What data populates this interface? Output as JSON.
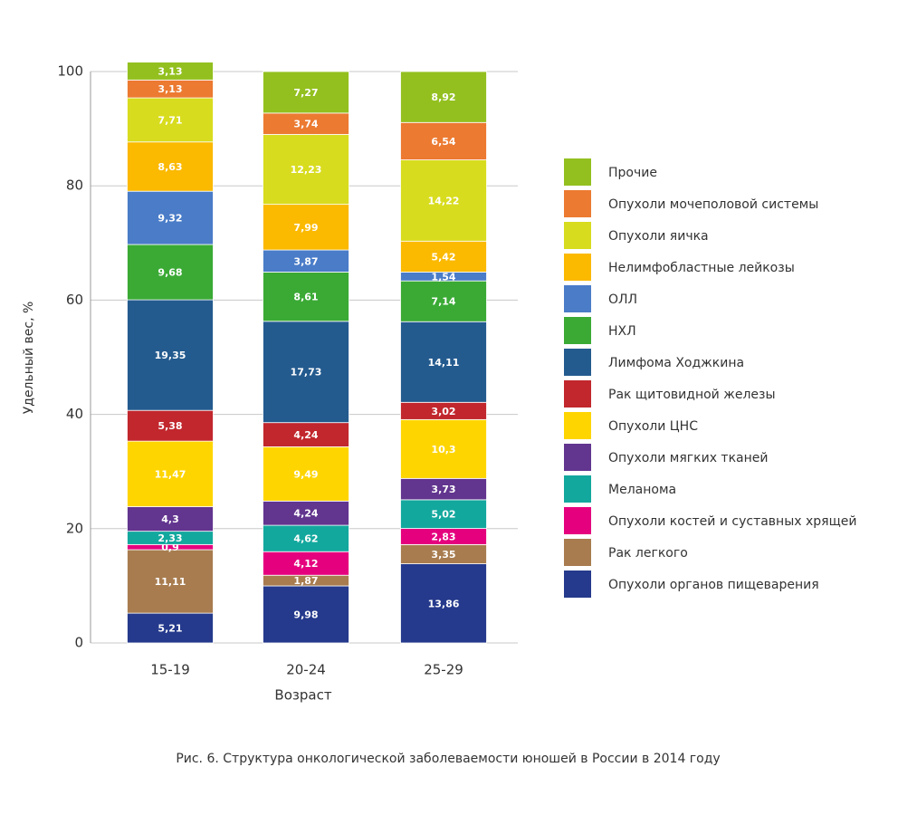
{
  "chart_data": {
    "type": "stacked-bar",
    "caption": "Рис. 6. Структура онкологической заболеваемости юношей в России в 2014 году",
    "xlabel": "Возраст",
    "ylabel": "Удельный вес, %",
    "categories": [
      "15-19",
      "20-24",
      "25-29"
    ],
    "ylim": [
      0,
      100
    ],
    "yticks": [
      0,
      20,
      40,
      60,
      80,
      100
    ],
    "grid": true,
    "series": [
      {
        "name": "Опухоли органов пищеварения",
        "color": "#253a8c",
        "values": [
          5.21,
          9.98,
          13.86
        ],
        "value_labels": [
          "5,21",
          "9,98",
          "13,86"
        ]
      },
      {
        "name": "Рак легкого",
        "color": "#a87c4f",
        "values": [
          11.11,
          1.87,
          3.35
        ],
        "value_labels": [
          "11,11",
          "1,87",
          "3,35"
        ]
      },
      {
        "name": "Опухоли костей и суставных хрящей",
        "color": "#e5007e",
        "values": [
          0.9,
          4.12,
          2.83
        ],
        "value_labels": [
          "0,9",
          "4,12",
          "2,83"
        ]
      },
      {
        "name": "Меланома",
        "color": "#13a89e",
        "values": [
          2.33,
          4.62,
          5.02
        ],
        "value_labels": [
          "2,33",
          "4,62",
          "5,02"
        ]
      },
      {
        "name": "Опухоли мягких тканей",
        "color": "#62358f",
        "values": [
          4.3,
          4.24,
          3.73
        ],
        "value_labels": [
          "4,3",
          "4,24",
          "3,73"
        ]
      },
      {
        "name": "Опухоли ЦНС",
        "color": "#ffd500",
        "values": [
          11.47,
          9.49,
          10.3
        ],
        "value_labels": [
          "11,47",
          "9,49",
          "10,3"
        ]
      },
      {
        "name": "Рак щитовидной железы",
        "color": "#c1272d",
        "values": [
          5.38,
          4.24,
          3.02
        ],
        "value_labels": [
          "5,38",
          "4,24",
          "3,02"
        ]
      },
      {
        "name": "Лимфома Ходжкина",
        "color": "#245b8f",
        "values": [
          19.35,
          17.73,
          14.11
        ],
        "value_labels": [
          "19,35",
          "17,73",
          "14,11"
        ]
      },
      {
        "name": "НХЛ",
        "color": "#3aaa35",
        "values": [
          9.68,
          8.61,
          7.14
        ],
        "value_labels": [
          "9,68",
          "8,61",
          "7,14"
        ]
      },
      {
        "name": "ОЛЛ",
        "color": "#4a7cc8",
        "values": [
          9.32,
          3.87,
          1.54
        ],
        "value_labels": [
          "9,32",
          "3,87",
          "1,54"
        ]
      },
      {
        "name": "Нелимфобластные лейкозы",
        "color": "#fbb900",
        "values": [
          8.63,
          7.99,
          5.42
        ],
        "value_labels": [
          "8,63",
          "7,99",
          "5,42"
        ]
      },
      {
        "name": "Опухоли яичка",
        "color": "#d8dc1e",
        "values": [
          7.71,
          12.23,
          14.22
        ],
        "value_labels": [
          "7,71",
          "12,23",
          "14,22"
        ]
      },
      {
        "name": "Опухоли мочеполовой системы",
        "color": "#ec7a31",
        "values": [
          3.13,
          3.74,
          6.54
        ],
        "value_labels": [
          "3,13",
          "3,74",
          "6,54"
        ]
      },
      {
        "name": "Прочие",
        "color": "#93c01f",
        "values": [
          3.13,
          7.27,
          8.92
        ],
        "value_labels": [
          "3,13",
          "7,27",
          "8,92"
        ]
      }
    ]
  }
}
